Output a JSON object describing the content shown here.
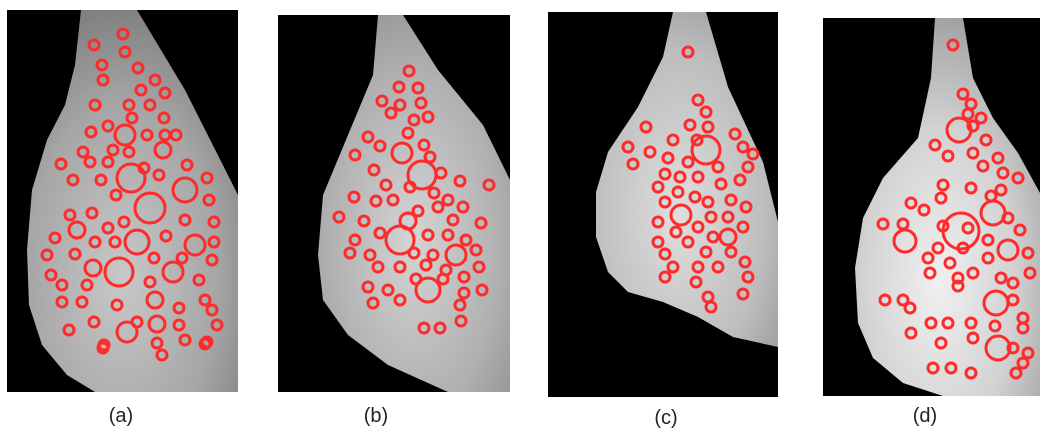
{
  "figure": {
    "panels": [
      {
        "label": "(a)",
        "marker_color": "#ff2a2a"
      },
      {
        "label": "(b)",
        "marker_color": "#ff2a2a"
      },
      {
        "label": "(c)",
        "marker_color": "#ff2a2a"
      },
      {
        "label": "(d)",
        "marker_color": "#ff2a2a"
      }
    ]
  }
}
